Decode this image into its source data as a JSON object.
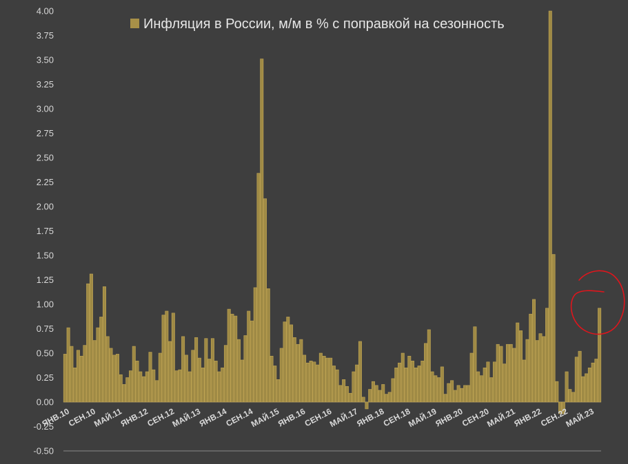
{
  "chart_data": {
    "type": "bar",
    "legend": {
      "label": "Инфляция в России, м/м в % с поправкой на сезонность",
      "placement": "top"
    },
    "ylim": [
      -0.5,
      4.0
    ],
    "yticks": [
      "-0.50",
      "-0.25",
      "0.00",
      "0.25",
      "0.50",
      "0.75",
      "1.00",
      "1.25",
      "1.50",
      "1.75",
      "2.00",
      "2.25",
      "2.50",
      "2.75",
      "3.00",
      "3.25",
      "3.50",
      "3.75",
      "4.00"
    ],
    "x_start": "2010-01",
    "x_tick_labels": [
      {
        "label": "ЯНВ.10",
        "index": 0
      },
      {
        "label": "СЕН.10",
        "index": 8
      },
      {
        "label": "МАЙ.11",
        "index": 16
      },
      {
        "label": "ЯНВ.12",
        "index": 24
      },
      {
        "label": "СЕН.12",
        "index": 32
      },
      {
        "label": "МАЙ.13",
        "index": 40
      },
      {
        "label": "ЯНВ.14",
        "index": 48
      },
      {
        "label": "СЕН.14",
        "index": 56
      },
      {
        "label": "МАЙ.15",
        "index": 64
      },
      {
        "label": "ЯНВ.16",
        "index": 72
      },
      {
        "label": "СЕН.16",
        "index": 80
      },
      {
        "label": "МАЙ.17",
        "index": 88
      },
      {
        "label": "ЯНВ.18",
        "index": 96
      },
      {
        "label": "СЕН.18",
        "index": 104
      },
      {
        "label": "МАЙ.19",
        "index": 112
      },
      {
        "label": "ЯНВ.20",
        "index": 120
      },
      {
        "label": "СЕН.20",
        "index": 128
      },
      {
        "label": "МАЙ.21",
        "index": 136
      },
      {
        "label": "ЯНВ.22",
        "index": 144
      },
      {
        "label": "СЕН.22",
        "index": 152
      },
      {
        "label": "МАЙ.23",
        "index": 160
      }
    ],
    "values": [
      0.49,
      0.76,
      0.57,
      0.35,
      0.53,
      0.47,
      0.58,
      1.21,
      1.31,
      0.63,
      0.76,
      0.87,
      1.18,
      0.67,
      0.55,
      0.48,
      0.49,
      0.28,
      0.18,
      0.25,
      0.32,
      0.57,
      0.42,
      0.31,
      0.26,
      0.31,
      0.51,
      0.33,
      0.22,
      0.5,
      0.89,
      0.93,
      0.62,
      0.91,
      0.32,
      0.33,
      0.67,
      0.48,
      0.31,
      0.53,
      0.66,
      0.45,
      0.35,
      0.65,
      0.44,
      0.65,
      0.42,
      0.31,
      0.35,
      0.58,
      0.95,
      0.9,
      0.88,
      0.64,
      0.43,
      0.68,
      0.93,
      0.83,
      1.17,
      2.34,
      3.51,
      2.08,
      1.16,
      0.47,
      0.37,
      0.23,
      0.55,
      0.82,
      0.87,
      0.79,
      0.66,
      0.59,
      0.64,
      0.48,
      0.4,
      0.42,
      0.41,
      0.38,
      0.5,
      0.47,
      0.45,
      0.45,
      0.37,
      0.33,
      0.17,
      0.23,
      0.16,
      0.09,
      0.31,
      0.38,
      0.62,
      0.05,
      -0.07,
      0.13,
      0.21,
      0.17,
      0.12,
      0.18,
      0.08,
      0.1,
      0.24,
      0.35,
      0.4,
      0.5,
      0.35,
      0.47,
      0.42,
      0.35,
      0.37,
      0.42,
      0.6,
      0.74,
      0.31,
      0.27,
      0.25,
      0.36,
      0.08,
      0.19,
      0.22,
      0.12,
      0.17,
      0.14,
      0.17,
      0.17,
      0.5,
      0.77,
      0.31,
      0.27,
      0.35,
      0.41,
      0.25,
      0.41,
      0.59,
      0.57,
      0.39,
      0.59,
      0.59,
      0.55,
      0.81,
      0.73,
      0.43,
      0.64,
      0.9,
      1.05,
      0.63,
      0.7,
      0.67,
      0.96,
      4.0,
      1.51,
      0.21,
      -0.12,
      -0.12,
      0.31,
      0.13,
      0.1,
      0.46,
      0.52,
      0.26,
      0.29,
      0.35,
      0.4,
      0.44,
      0.96
    ],
    "bar_color": "#9f8a45",
    "bar_highlight": "#c3a755",
    "grid": false,
    "annotation": {
      "shape": "hand-drawn red circle",
      "target": "latest bars (2023)",
      "color": "#e0151c"
    }
  },
  "colors": {
    "background": "#3e3e3e",
    "axis": "#8a8a8a"
  }
}
